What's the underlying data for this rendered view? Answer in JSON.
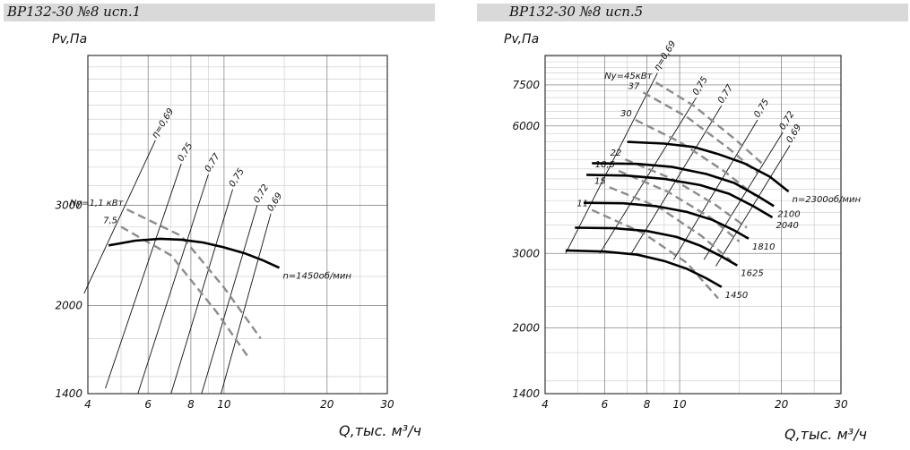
{
  "chart_data": [
    {
      "type": "line",
      "title": "ВР132-30 №8 исп.1",
      "ylabel": "Pv,Па",
      "xlabel": "Q,тыс. м³/ч",
      "xscale": "log",
      "yscale": "log",
      "xlim": [
        4,
        30
      ],
      "ylim": [
        1400,
        5500
      ],
      "x_ticks": [
        4,
        6,
        8,
        10,
        20,
        30
      ],
      "y_ticks": [
        1400,
        2000,
        3000
      ],
      "grid": true,
      "series": [
        {
          "name": "n=1450об/мин",
          "kind": "speed",
          "x": [
            4.6,
            5.5,
            6.5,
            7.5,
            8.7,
            10.0,
            11.5,
            13.0,
            14.5
          ],
          "y": [
            2550,
            2600,
            2620,
            2610,
            2580,
            2530,
            2470,
            2400,
            2330
          ]
        }
      ],
      "efficiency_lines": [
        {
          "label": "η=0,69",
          "x": [
            3.9,
            6.3
          ],
          "y": [
            2100,
            3900
          ]
        },
        {
          "label": "0,75",
          "x": [
            4.5,
            7.5
          ],
          "y": [
            1430,
            3550
          ]
        },
        {
          "label": "0,77",
          "x": [
            5.6,
            9.0
          ],
          "y": [
            1400,
            3400
          ]
        },
        {
          "label": "0,75",
          "x": [
            7.0,
            10.6
          ],
          "y": [
            1400,
            3200
          ]
        },
        {
          "label": "0,72",
          "x": [
            8.6,
            12.5
          ],
          "y": [
            1400,
            3000
          ]
        },
        {
          "label": "0,69",
          "x": [
            9.8,
            13.7
          ],
          "y": [
            1400,
            2900
          ]
        }
      ],
      "power_lines": [
        {
          "label": "Ny=1,1 кВт",
          "x": [
            5.2,
            7.5,
            10.0,
            12.8
          ],
          "y": [
            2950,
            2650,
            2150,
            1750
          ]
        },
        {
          "label": "7,5",
          "x": [
            5.0,
            7.0,
            9.5,
            11.8
          ],
          "y": [
            2750,
            2450,
            1950,
            1620
          ]
        }
      ]
    },
    {
      "type": "line",
      "title": "ВР132-30 №8 исп.5",
      "ylabel": "Pv,Па",
      "xlabel": "Q,тыс. м³/ч",
      "xscale": "log",
      "yscale": "log",
      "xlim": [
        4,
        30
      ],
      "ylim": [
        1400,
        8800
      ],
      "x_ticks": [
        4,
        6,
        8,
        10,
        20,
        30
      ],
      "y_ticks": [
        1400,
        2000,
        3000,
        6000,
        7500
      ],
      "grid": true,
      "series": [
        {
          "name": "n=2300об/мин",
          "kind": "speed",
          "x": [
            7.0,
            9.0,
            11.0,
            13.0,
            15.5,
            18.5,
            21.0
          ],
          "y": [
            5500,
            5450,
            5350,
            5150,
            4900,
            4550,
            4200
          ]
        },
        {
          "name": "2100",
          "kind": "speed",
          "x": [
            5.5,
            7.5,
            9.5,
            12.0,
            14.5,
            17.0,
            19.0
          ],
          "y": [
            4900,
            4880,
            4800,
            4620,
            4400,
            4100,
            3880
          ]
        },
        {
          "name": "2040",
          "kind": "speed",
          "x": [
            5.3,
            7.0,
            9.0,
            11.5,
            14.0,
            16.5,
            18.8
          ],
          "y": [
            4600,
            4580,
            4500,
            4350,
            4150,
            3880,
            3650
          ]
        },
        {
          "name": "1810",
          "kind": "speed",
          "x": [
            5.2,
            6.8,
            8.5,
            10.5,
            12.5,
            14.5,
            16.0
          ],
          "y": [
            3950,
            3940,
            3880,
            3760,
            3600,
            3400,
            3250
          ]
        },
        {
          "name": "1625",
          "kind": "speed",
          "x": [
            4.9,
            6.4,
            8.0,
            9.8,
            11.5,
            13.3,
            14.8
          ],
          "y": [
            3450,
            3440,
            3390,
            3280,
            3130,
            2950,
            2810
          ]
        },
        {
          "name": "1450",
          "kind": "speed",
          "x": [
            4.6,
            6.0,
            7.5,
            9.0,
            10.5,
            12.0,
            13.3
          ],
          "y": [
            3050,
            3030,
            2980,
            2880,
            2760,
            2620,
            2500
          ]
        }
      ],
      "efficiency_lines": [
        {
          "label": "η=0,69",
          "x": [
            4.6,
            8.6
          ],
          "y": [
            3000,
            8000
          ]
        },
        {
          "label": "0,75",
          "x": [
            5.8,
            11.2
          ],
          "y": [
            3000,
            7000
          ]
        },
        {
          "label": "0,77",
          "x": [
            7.2,
            13.3
          ],
          "y": [
            3000,
            6700
          ]
        },
        {
          "label": "0,75",
          "x": [
            9.6,
            17.0
          ],
          "y": [
            2900,
            6200
          ]
        },
        {
          "label": "0,72",
          "x": [
            11.8,
            20.2
          ],
          "y": [
            2900,
            5800
          ]
        },
        {
          "label": "0,69",
          "x": [
            12.8,
            21.2
          ],
          "y": [
            2800,
            5400
          ]
        }
      ],
      "power_lines": [
        {
          "label": "Ny=45кВт",
          "x": [
            8.5,
            11.0,
            14.5,
            17.5
          ],
          "y": [
            7600,
            6700,
            5600,
            4900
          ]
        },
        {
          "label": "37",
          "x": [
            7.8,
            10.5,
            14.0,
            17.0
          ],
          "y": [
            7200,
            6300,
            5300,
            4650
          ]
        },
        {
          "label": "30",
          "x": [
            7.4,
            10.0,
            13.5,
            16.8
          ],
          "y": [
            6200,
            5500,
            4700,
            4100
          ]
        },
        {
          "label": "22",
          "x": [
            6.9,
            9.5,
            12.8,
            15.8
          ],
          "y": [
            5000,
            4500,
            3900,
            3450
          ]
        },
        {
          "label": "18,5",
          "x": [
            6.6,
            9.2,
            12.3,
            15.0
          ],
          "y": [
            4700,
            4200,
            3650,
            3200
          ]
        },
        {
          "label": "15",
          "x": [
            6.2,
            8.7,
            11.6,
            14.2
          ],
          "y": [
            4300,
            3850,
            3300,
            2880
          ]
        },
        {
          "label": "11",
          "x": [
            5.5,
            7.8,
            10.5,
            13.0
          ],
          "y": [
            3800,
            3350,
            2850,
            2350
          ]
        }
      ]
    }
  ]
}
